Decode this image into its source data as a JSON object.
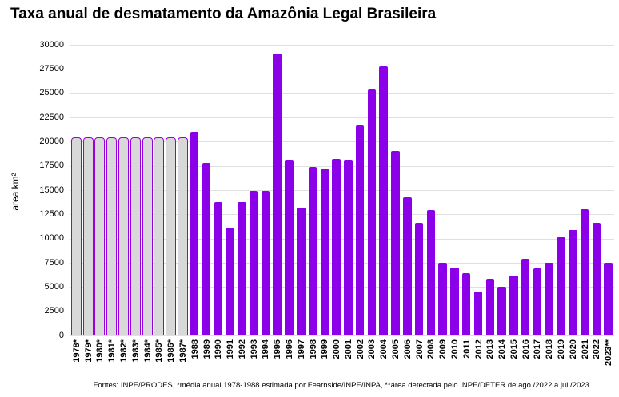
{
  "colors": {
    "bar_fill": "#8b00e8",
    "estimated_bar_fill": "#d8d8d8",
    "estimated_bar_border": "#9800d9",
    "gridline": "#e0e0e0",
    "text": "#000000",
    "background": "#ffffff"
  },
  "chart_data": {
    "type": "bar",
    "title": "Taxa anual de desmatamento da Amazônia Legal Brasileira",
    "ylabel": "area km²",
    "xlabel": "",
    "ylim": [
      0,
      30000
    ],
    "ytick_step": 2500,
    "grid": true,
    "legend_position": "none",
    "footnote": "Fontes: INPE/PRODES, *média anual 1978-1988 estimada por Fearnside/INPE/INPA, **área detectada pelo INPE/DETER de ago./2022 a jul./2023.",
    "categories": [
      "1978*",
      "1979*",
      "1980*",
      "1981*",
      "1982*",
      "1983*",
      "1984*",
      "1985*",
      "1986*",
      "1987*",
      "1988",
      "1989",
      "1990",
      "1991",
      "1992",
      "1993",
      "1994",
      "1995",
      "1996",
      "1997",
      "1998",
      "1999",
      "2000",
      "2001",
      "2002",
      "2003",
      "2004",
      "2005",
      "2006",
      "2007",
      "2008",
      "2009",
      "2010",
      "2011",
      "2012",
      "2013",
      "2014",
      "2015",
      "2016",
      "2017",
      "2018",
      "2019",
      "2020",
      "2021",
      "2022",
      "2023**"
    ],
    "values": [
      20400,
      20400,
      20400,
      20400,
      20400,
      20400,
      20400,
      20400,
      20400,
      20400,
      21050,
      17770,
      13730,
      11030,
      13786,
      14896,
      14896,
      29059,
      18161,
      13227,
      17383,
      17259,
      18226,
      18165,
      21651,
      25396,
      27772,
      19014,
      14286,
      11651,
      12911,
      7464,
      7000,
      6418,
      4571,
      5891,
      5012,
      6207,
      7893,
      6947,
      7536,
      10129,
      10851,
      13038,
      11594,
      7500
    ],
    "estimated": [
      true,
      true,
      true,
      true,
      true,
      true,
      true,
      true,
      true,
      true,
      false,
      false,
      false,
      false,
      false,
      false,
      false,
      false,
      false,
      false,
      false,
      false,
      false,
      false,
      false,
      false,
      false,
      false,
      false,
      false,
      false,
      false,
      false,
      false,
      false,
      false,
      false,
      false,
      false,
      false,
      false,
      false,
      false,
      false,
      false,
      false
    ]
  }
}
